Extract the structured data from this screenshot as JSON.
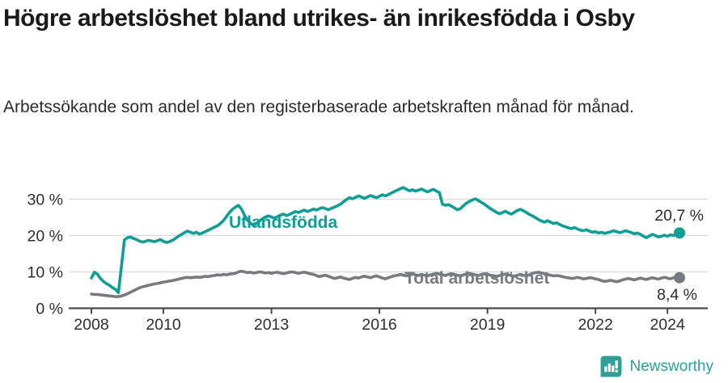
{
  "header": {
    "title": "Högre arbetslöshet bland utrikes- än inrikesfödda i Osby",
    "subtitle": "Arbetssökande som andel av den registerbaserade arbetskraften månad för månad."
  },
  "chart_data": {
    "type": "line",
    "title": "Högre arbetslöshet bland utrikes- än inrikesfödda i Osby",
    "subtitle": "Arbetssökande som andel av den registerbaserade arbetskraften månad för månad.",
    "x_unit": "month",
    "x_start": "2008-01",
    "x_end": "2024-05",
    "ylim": [
      0,
      34
    ],
    "grid": "horizontal",
    "legend_position": "inline-line-labels",
    "y_ticks": [
      {
        "value": 0,
        "label": "0 %"
      },
      {
        "value": 10,
        "label": "10 %"
      },
      {
        "value": 20,
        "label": "20 %"
      },
      {
        "value": 30,
        "label": "30 %"
      }
    ],
    "x_ticks": [
      {
        "year": 2008,
        "label": "2008"
      },
      {
        "year": 2010,
        "label": "2010"
      },
      {
        "year": 2013,
        "label": "2013"
      },
      {
        "year": 2016,
        "label": "2016"
      },
      {
        "year": 2019,
        "label": "2019"
      },
      {
        "year": 2022,
        "label": "2022"
      },
      {
        "year": 2024,
        "label": "2024"
      }
    ],
    "series": [
      {
        "name": "Utlandsfödda",
        "color": "#0f9e95",
        "end_label": "20,7 %",
        "values": [
          8.3,
          9.9,
          9.4,
          8.2,
          7.4,
          6.8,
          6.3,
          5.7,
          5.2,
          4.3,
          11.5,
          18.8,
          19.4,
          19.6,
          19.2,
          18.9,
          18.5,
          18.2,
          18.4,
          18.7,
          18.5,
          18.3,
          18.6,
          18.9,
          18.4,
          18.1,
          18.3,
          18.7,
          19.2,
          19.8,
          20.3,
          20.8,
          21.2,
          20.9,
          20.6,
          20.9,
          20.4,
          20.7,
          21.1,
          21.5,
          21.9,
          22.3,
          22.7,
          23.3,
          24.1,
          25.2,
          26.3,
          27.2,
          27.8,
          28.3,
          27.3,
          25.6,
          24.2,
          23.4,
          22.8,
          23.3,
          24.0,
          24.6,
          25.1,
          25.4,
          25.1,
          24.8,
          25.2,
          25.6,
          25.9,
          25.5,
          25.8,
          26.2,
          26.6,
          26.3,
          26.7,
          27.0,
          26.6,
          26.9,
          27.3,
          27.0,
          27.4,
          27.7,
          27.4,
          27.1,
          27.5,
          27.8,
          28.2,
          28.6,
          29.3,
          29.9,
          30.4,
          30.1,
          30.5,
          30.9,
          30.6,
          30.2,
          30.6,
          31.0,
          30.7,
          30.4,
          30.8,
          31.2,
          30.9,
          31.3,
          31.7,
          32.1,
          32.5,
          32.9,
          33.2,
          32.7,
          32.3,
          32.6,
          32.2,
          32.5,
          32.8,
          32.4,
          32.0,
          32.4,
          32.7,
          32.2,
          31.8,
          28.6,
          28.3,
          28.5,
          28.1,
          27.6,
          27.1,
          27.4,
          28.2,
          28.9,
          29.4,
          29.8,
          30.1,
          29.6,
          29.1,
          28.6,
          28.0,
          27.4,
          26.9,
          26.4,
          26.0,
          26.3,
          26.7,
          26.2,
          25.9,
          26.4,
          26.9,
          27.2,
          26.8,
          26.3,
          25.8,
          25.4,
          24.9,
          24.4,
          24.0,
          23.7,
          24.1,
          23.7,
          23.3,
          23.5,
          23.1,
          22.7,
          22.4,
          22.1,
          21.9,
          22.2,
          21.8,
          21.5,
          21.3,
          21.6,
          21.2,
          20.9,
          21.1,
          20.7,
          20.9,
          20.6,
          20.8,
          21.0,
          21.3,
          21.1,
          20.8,
          21.0,
          21.3,
          21.1,
          20.8,
          20.5,
          20.7,
          20.3,
          19.8,
          19.4,
          19.9,
          20.3,
          20.0,
          19.6,
          19.8,
          20.1,
          19.8,
          20.2,
          20.0,
          20.3,
          20.7
        ]
      },
      {
        "name": "Total arbetslöshet",
        "color": "#797980",
        "end_label": "8,4 %",
        "values": [
          3.9,
          3.8,
          3.8,
          3.7,
          3.6,
          3.5,
          3.4,
          3.3,
          3.2,
          3.2,
          3.4,
          3.6,
          4.0,
          4.4,
          4.8,
          5.2,
          5.6,
          5.9,
          6.1,
          6.3,
          6.5,
          6.7,
          6.8,
          7.0,
          7.2,
          7.3,
          7.5,
          7.6,
          7.8,
          8.0,
          8.2,
          8.4,
          8.5,
          8.4,
          8.5,
          8.6,
          8.5,
          8.6,
          8.8,
          8.7,
          8.9,
          9.0,
          9.2,
          9.1,
          9.3,
          9.2,
          9.4,
          9.5,
          9.6,
          10.0,
          10.2,
          10.0,
          9.8,
          9.9,
          9.7,
          9.8,
          10.0,
          9.9,
          9.7,
          9.8,
          9.6,
          9.8,
          9.9,
          9.7,
          9.5,
          9.7,
          9.9,
          10.0,
          9.8,
          9.6,
          9.8,
          9.9,
          9.7,
          9.5,
          9.3,
          9.0,
          8.7,
          8.9,
          9.1,
          8.8,
          8.5,
          8.2,
          8.4,
          8.6,
          8.3,
          8.1,
          7.9,
          8.2,
          8.5,
          8.3,
          8.6,
          8.8,
          8.6,
          8.4,
          8.7,
          8.9,
          8.6,
          8.3,
          8.1,
          8.4,
          8.7,
          8.9,
          9.1,
          9.3,
          9.1,
          8.9,
          9.2,
          9.4,
          9.2,
          9.0,
          9.3,
          9.1,
          8.9,
          9.2,
          9.4,
          9.6,
          9.4,
          9.2,
          9.0,
          9.3,
          9.5,
          9.3,
          9.1,
          8.9,
          9.2,
          9.4,
          9.6,
          9.4,
          9.2,
          9.0,
          9.3,
          9.5,
          9.3,
          9.1,
          8.9,
          8.7,
          9.0,
          9.2,
          9.4,
          9.2,
          9.0,
          8.8,
          9.1,
          9.3,
          9.1,
          8.9,
          9.2,
          9.6,
          9.8,
          9.9,
          9.7,
          9.5,
          9.3,
          9.1,
          8.9,
          9.0,
          8.9,
          8.7,
          8.5,
          8.4,
          8.2,
          8.3,
          8.5,
          8.3,
          8.1,
          8.2,
          8.4,
          8.3,
          8.1,
          7.9,
          7.6,
          7.4,
          7.5,
          7.7,
          7.5,
          7.3,
          7.5,
          7.8,
          8.0,
          8.2,
          8.0,
          7.8,
          8.1,
          8.3,
          8.1,
          7.9,
          8.2,
          8.4,
          8.2,
          8.0,
          8.3,
          8.5,
          8.3,
          8.1,
          8.4,
          8.2,
          8.4
        ]
      }
    ],
    "colors": {
      "accent_teal": "#0f9e95",
      "line_gray": "#797980",
      "grid": "#dcdcdc",
      "axis": "#4a4a4a",
      "tick_text": "#2e2e2e",
      "end_label_text": "#2b2b2b"
    }
  },
  "footer": {
    "brand": "Newsworthy",
    "logo_color": "#2fa096"
  }
}
